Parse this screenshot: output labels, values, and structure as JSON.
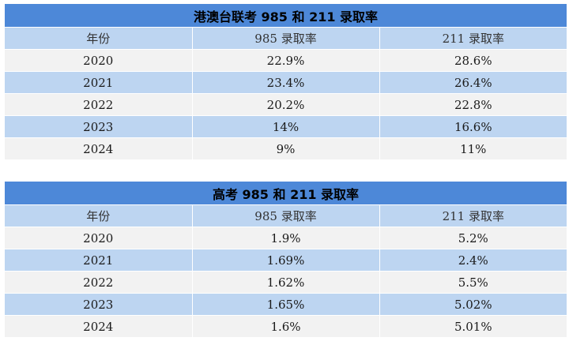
{
  "tables": [
    {
      "title": "港澳台联考 985 和 211 录取率",
      "headers": [
        "年份",
        "985 录取率",
        "211 录取率"
      ],
      "rows": [
        [
          "2020",
          "22.9%",
          "28.6%"
        ],
        [
          "2021",
          "23.4%",
          "26.4%"
        ],
        [
          "2022",
          "20.2%",
          "22.8%"
        ],
        [
          "2023",
          "14%",
          "16.6%"
        ],
        [
          "2024",
          "9%",
          "11%"
        ]
      ]
    },
    {
      "title": "高考 985 和 211 录取率",
      "headers": [
        "年份",
        "985 录取率",
        "211 录取率"
      ],
      "rows": [
        [
          "2020",
          "1.9%",
          "5.2%"
        ],
        [
          "2021",
          "1.69%",
          "2.4%"
        ],
        [
          "2022",
          "1.62%",
          "5.5%"
        ],
        [
          "2023",
          "1.65%",
          "5.02%"
        ],
        [
          "2024",
          "1.6%",
          "5.01%"
        ]
      ]
    }
  ]
}
